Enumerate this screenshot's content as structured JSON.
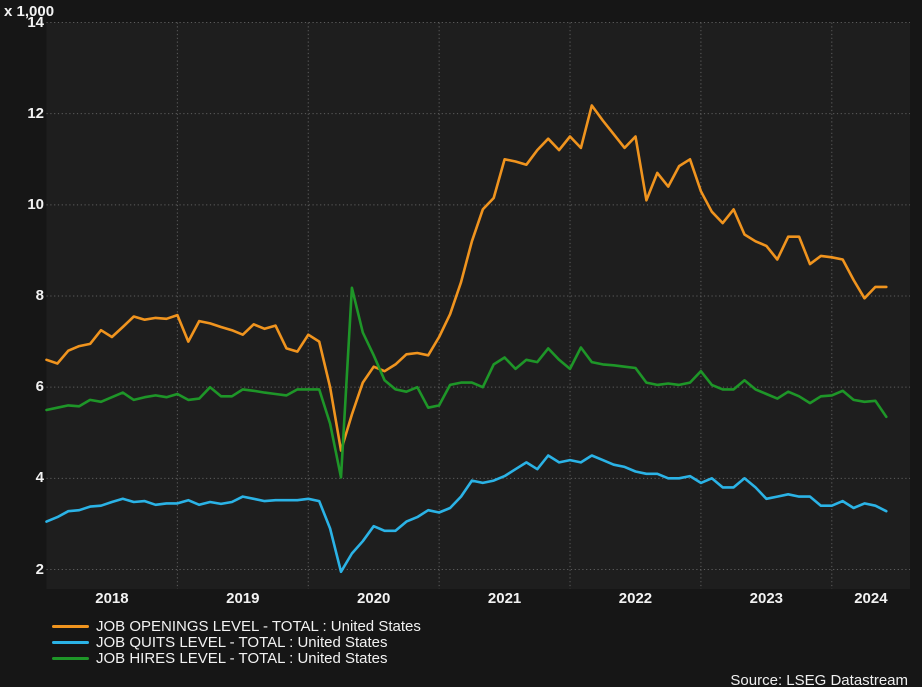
{
  "chart_data": {
    "type": "line",
    "title": "",
    "unit_label": "x 1,000",
    "source": "Source: LSEG Datastream",
    "x_start": "2018-01",
    "x_end": "2024-06",
    "x_tick_labels": [
      "2018",
      "2019",
      "2020",
      "2021",
      "2022",
      "2023",
      "2024"
    ],
    "y_ticks": [
      14,
      12,
      10,
      8,
      6,
      4,
      2
    ],
    "ylim": [
      1.6,
      14
    ],
    "grid": "dotted",
    "legend_position": "bottom-left",
    "series": [
      {
        "name": "JOB OPENINGS LEVEL - TOTAL : United States",
        "color": "#F0941E",
        "values": [
          6.6,
          6.52,
          6.8,
          6.9,
          6.95,
          7.25,
          7.1,
          7.32,
          7.55,
          7.48,
          7.52,
          7.5,
          7.58,
          7.0,
          7.45,
          7.4,
          7.32,
          7.25,
          7.15,
          7.38,
          7.28,
          7.35,
          6.85,
          6.78,
          7.15,
          7.0,
          6.0,
          4.61,
          5.4,
          6.1,
          6.45,
          6.35,
          6.5,
          6.72,
          6.75,
          6.7,
          7.1,
          7.6,
          8.3,
          9.2,
          9.9,
          10.15,
          11.0,
          10.95,
          10.88,
          11.2,
          11.45,
          11.2,
          11.5,
          11.25,
          12.18,
          11.85,
          11.55,
          11.25,
          11.5,
          10.1,
          10.7,
          10.4,
          10.85,
          11.0,
          10.3,
          9.85,
          9.6,
          9.9,
          9.35,
          9.2,
          9.1,
          8.8,
          9.3,
          9.3,
          8.7,
          8.88,
          8.85,
          8.8,
          8.35,
          7.95,
          8.2,
          8.2
        ]
      },
      {
        "name": "JOB QUITS LEVEL - TOTAL : United States",
        "color": "#2BB3E6",
        "values": [
          3.05,
          3.15,
          3.28,
          3.3,
          3.38,
          3.4,
          3.48,
          3.55,
          3.48,
          3.5,
          3.42,
          3.45,
          3.45,
          3.52,
          3.42,
          3.48,
          3.44,
          3.48,
          3.6,
          3.55,
          3.5,
          3.52,
          3.52,
          3.52,
          3.55,
          3.5,
          2.9,
          1.95,
          2.35,
          2.62,
          2.95,
          2.85,
          2.85,
          3.05,
          3.15,
          3.3,
          3.25,
          3.35,
          3.6,
          3.95,
          3.9,
          3.95,
          4.05,
          4.2,
          4.35,
          4.2,
          4.5,
          4.35,
          4.4,
          4.35,
          4.5,
          4.4,
          4.3,
          4.25,
          4.15,
          4.1,
          4.1,
          4.0,
          4.0,
          4.05,
          3.9,
          4.0,
          3.8,
          3.8,
          4.0,
          3.8,
          3.55,
          3.6,
          3.65,
          3.6,
          3.6,
          3.4,
          3.4,
          3.5,
          3.35,
          3.45,
          3.4,
          3.28
        ]
      },
      {
        "name": "JOB HIRES LEVEL - TOTAL : United States",
        "color": "#1E9628",
        "values": [
          5.5,
          5.55,
          5.6,
          5.58,
          5.72,
          5.68,
          5.78,
          5.88,
          5.72,
          5.78,
          5.82,
          5.78,
          5.85,
          5.72,
          5.75,
          6.0,
          5.8,
          5.8,
          5.95,
          5.92,
          5.88,
          5.85,
          5.82,
          5.95,
          5.95,
          5.95,
          5.2,
          4.02,
          8.18,
          7.2,
          6.7,
          6.15,
          5.95,
          5.9,
          6.0,
          5.55,
          5.6,
          6.05,
          6.1,
          6.1,
          6.0,
          6.5,
          6.65,
          6.4,
          6.6,
          6.55,
          6.85,
          6.6,
          6.4,
          6.87,
          6.55,
          6.5,
          6.48,
          6.45,
          6.42,
          6.1,
          6.05,
          6.08,
          6.05,
          6.1,
          6.35,
          6.05,
          5.95,
          5.95,
          6.15,
          5.95,
          5.85,
          5.75,
          5.9,
          5.8,
          5.65,
          5.8,
          5.82,
          5.92,
          5.72,
          5.68,
          5.7,
          5.35
        ]
      }
    ],
    "style": {
      "background": "#161616",
      "plot_background": "#1E1E1E",
      "grid_color": "#6A6A6A",
      "text_color": "#F2F2F2"
    }
  }
}
